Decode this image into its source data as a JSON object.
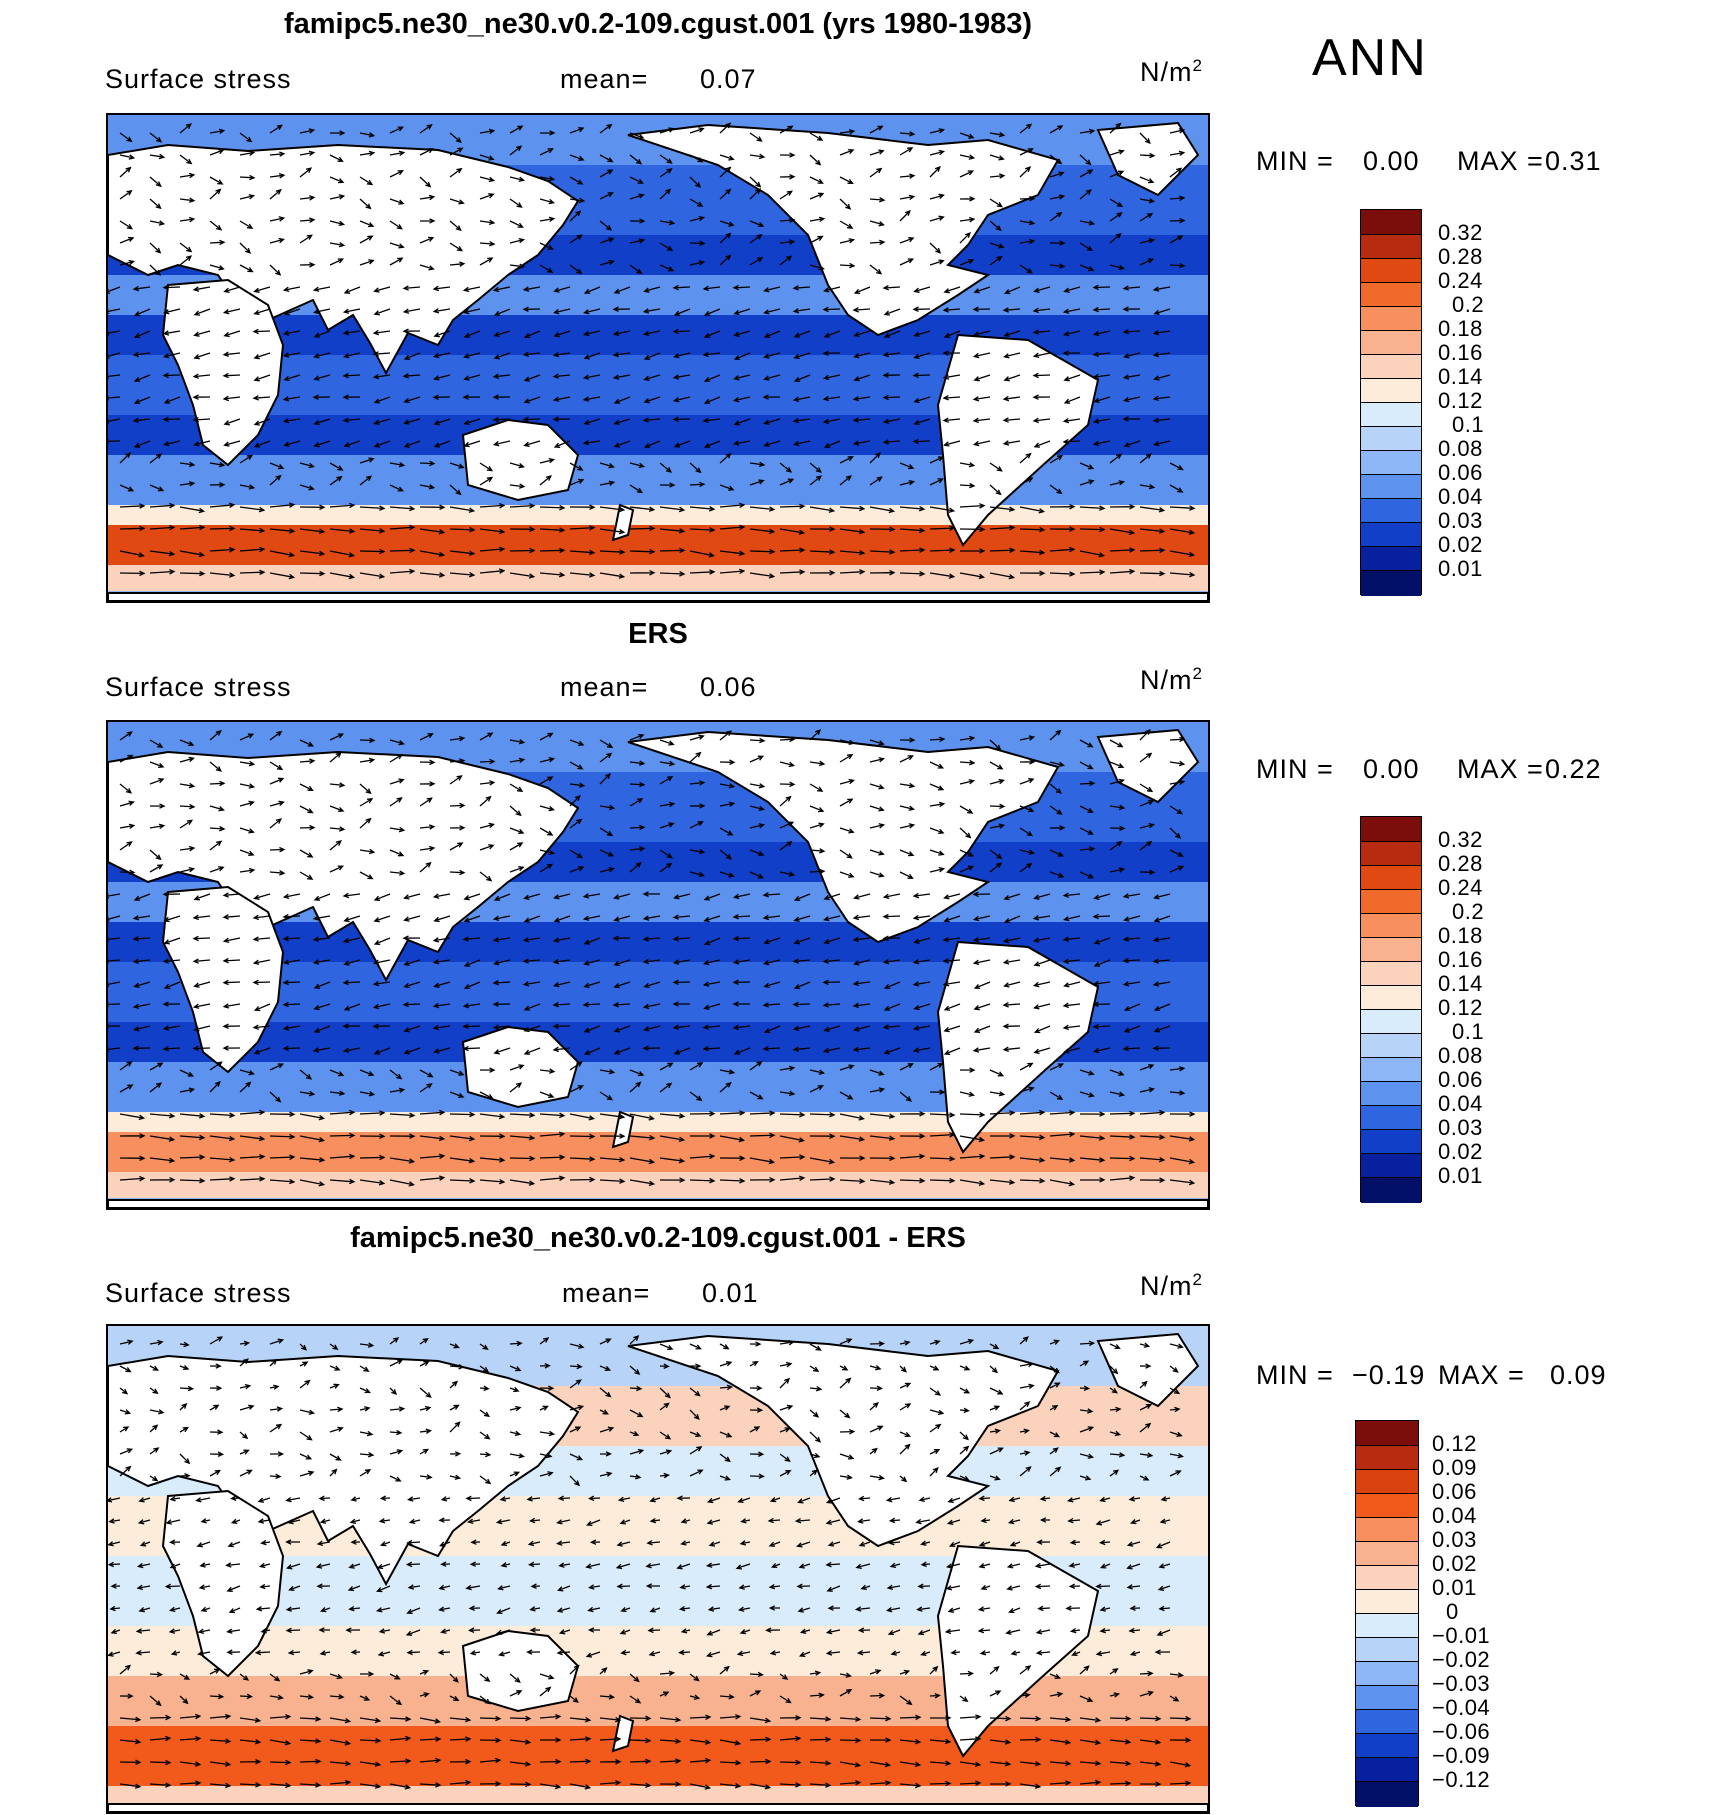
{
  "season": "ANN",
  "panels": [
    {
      "id": "model",
      "title": "famipc5.ne30_ne30.v0.2-109.cgust.001 (yrs 1980-1983)",
      "variable": "Surface stress",
      "mean_label": "mean=",
      "mean_value": "0.07",
      "units_base": "N/m",
      "units_exp": "2",
      "min_label": "MIN =",
      "min_value": "0.00",
      "max_label": "MAX =",
      "max_value": "0.31",
      "field": "stress-magnitude",
      "colorbar_labels": [
        "0.32",
        "0.28",
        "0.24",
        "0.2",
        "0.18",
        "0.16",
        "0.14",
        "0.12",
        "0.1",
        "0.08",
        "0.06",
        "0.04",
        "0.03",
        "0.02",
        "0.01"
      ],
      "colors": [
        "#7b0d0a",
        "#b72c10",
        "#e04a12",
        "#f06a2c",
        "#f7905e",
        "#f9b28f",
        "#fbd3bd",
        "#fdecd9",
        "#d9ecfb",
        "#b7d4f8",
        "#8cb6f5",
        "#5d93ee",
        "#2f66e0",
        "#123fc8",
        "#06209e",
        "#021068"
      ]
    },
    {
      "id": "obs",
      "title": "ERS",
      "variable": "Surface stress",
      "mean_label": "mean=",
      "mean_value": "0.06",
      "units_base": "N/m",
      "units_exp": "2",
      "min_label": "MIN =",
      "min_value": "0.00",
      "max_label": "MAX =",
      "max_value": "0.22",
      "field": "stress-magnitude",
      "colorbar_labels": [
        "0.32",
        "0.28",
        "0.24",
        "0.2",
        "0.18",
        "0.16",
        "0.14",
        "0.12",
        "0.1",
        "0.08",
        "0.06",
        "0.04",
        "0.03",
        "0.02",
        "0.01"
      ],
      "colors": [
        "#7b0d0a",
        "#b72c10",
        "#e04a12",
        "#f06a2c",
        "#f7905e",
        "#f9b28f",
        "#fbd3bd",
        "#fdecd9",
        "#d9ecfb",
        "#b7d4f8",
        "#8cb6f5",
        "#5d93ee",
        "#2f66e0",
        "#123fc8",
        "#06209e",
        "#021068"
      ]
    },
    {
      "id": "diff",
      "title": "famipc5.ne30_ne30.v0.2-109.cgust.001 - ERS",
      "variable": "Surface stress",
      "mean_label": "mean=",
      "mean_value": "0.01",
      "units_base": "N/m",
      "units_exp": "2",
      "min_label": "MIN =",
      "min_value": "−0.19",
      "max_label": "MAX =",
      "max_value": "0.09",
      "field": "stress-difference",
      "colorbar_labels": [
        "0.12",
        "0.09",
        "0.06",
        "0.04",
        "0.03",
        "0.02",
        "0.01",
        "0",
        "−0.01",
        "−0.02",
        "−0.03",
        "−0.04",
        "−0.06",
        "−0.09",
        "−0.12"
      ],
      "colors": [
        "#7b0d0a",
        "#b72c10",
        "#d9410f",
        "#f25a1c",
        "#f7905e",
        "#f9b28f",
        "#fbd3bd",
        "#fdecd9",
        "#d9ecfb",
        "#b7d4f8",
        "#8cb6f5",
        "#5d93ee",
        "#2f66e0",
        "#123fc8",
        "#06209e",
        "#021068"
      ]
    }
  ]
}
